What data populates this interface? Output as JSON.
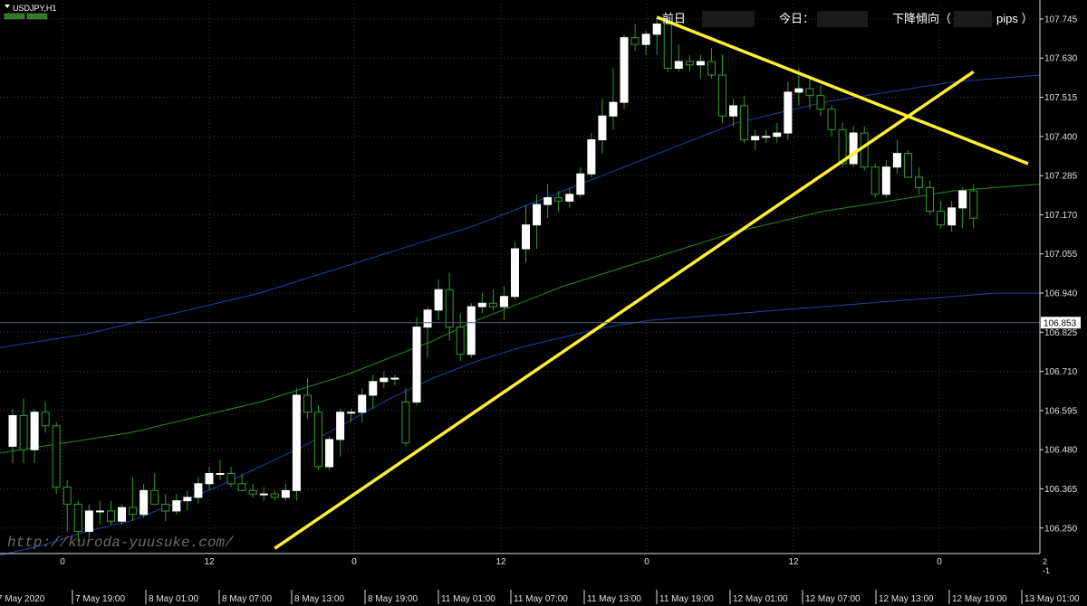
{
  "window": {
    "symbol_title": "USDJPY,H1",
    "watermark": "http://kuroda-yuusuke.com/"
  },
  "header": {
    "prev_day_label": "前日",
    "today_label": "今日：",
    "trend_label": "下降傾向（",
    "trend_unit": "pips ）"
  },
  "colors": {
    "background": "#000000",
    "bull_candle": "#ffffff",
    "bear_candle": "#000000",
    "wick_color": "#2e9e2e",
    "upper_band": "#2040a8",
    "middle_line": "#1f8f1f",
    "lower_band": "#2040a8",
    "trendline": "#ffee33",
    "grid": "#3a3a3a",
    "text": "#e0e0e0"
  },
  "current_price": {
    "value": 106.853,
    "label": "106.853"
  },
  "chart_data": {
    "type": "candlestick",
    "ylim": [
      106.175,
      107.79
    ],
    "y_ticks": [
      "107.745",
      "107.630",
      "107.515",
      "107.400",
      "107.285",
      "107.170",
      "107.055",
      "106.940",
      "106.825",
      "106.710",
      "106.595",
      "106.480",
      "106.365",
      "106.250"
    ],
    "x_ticks": [
      "7 May 2020",
      "7 May 19:00",
      "8 May 01:00",
      "8 May 07:00",
      "8 May 13:00",
      "8 May 19:00",
      "11 May 01:00",
      "11 May 07:00",
      "11 May 13:00",
      "11 May 19:00",
      "12 May 01:00",
      "12 May 07:00",
      "12 May 13:00",
      "12 May 19:00",
      "13 May 01:00"
    ],
    "hour_ticks": [
      "0",
      "12",
      "0",
      "12",
      "0",
      "12",
      "0"
    ],
    "candles": [
      {
        "o": 106.49,
        "h": 106.6,
        "l": 106.44,
        "c": 106.58
      },
      {
        "o": 106.58,
        "h": 106.63,
        "l": 106.44,
        "c": 106.48
      },
      {
        "o": 106.48,
        "h": 106.6,
        "l": 106.44,
        "c": 106.59
      },
      {
        "o": 106.59,
        "h": 106.62,
        "l": 106.53,
        "c": 106.55
      },
      {
        "o": 106.55,
        "h": 106.56,
        "l": 106.35,
        "c": 106.37
      },
      {
        "o": 106.37,
        "h": 106.39,
        "l": 106.24,
        "c": 106.32
      },
      {
        "o": 106.32,
        "h": 106.33,
        "l": 106.21,
        "c": 106.24
      },
      {
        "o": 106.24,
        "h": 106.32,
        "l": 106.22,
        "c": 106.3
      },
      {
        "o": 106.3,
        "h": 106.33,
        "l": 106.26,
        "c": 106.3
      },
      {
        "o": 106.3,
        "h": 106.33,
        "l": 106.26,
        "c": 106.27
      },
      {
        "o": 106.27,
        "h": 106.32,
        "l": 106.26,
        "c": 106.31
      },
      {
        "o": 106.31,
        "h": 106.4,
        "l": 106.27,
        "c": 106.29
      },
      {
        "o": 106.29,
        "h": 106.38,
        "l": 106.28,
        "c": 106.36
      },
      {
        "o": 106.36,
        "h": 106.41,
        "l": 106.33,
        "c": 106.32
      },
      {
        "o": 106.32,
        "h": 106.35,
        "l": 106.27,
        "c": 106.3
      },
      {
        "o": 106.3,
        "h": 106.35,
        "l": 106.29,
        "c": 106.33
      },
      {
        "o": 106.33,
        "h": 106.36,
        "l": 106.3,
        "c": 106.34
      },
      {
        "o": 106.34,
        "h": 106.4,
        "l": 106.32,
        "c": 106.38
      },
      {
        "o": 106.38,
        "h": 106.43,
        "l": 106.36,
        "c": 106.41
      },
      {
        "o": 106.41,
        "h": 106.45,
        "l": 106.39,
        "c": 106.41
      },
      {
        "o": 106.41,
        "h": 106.43,
        "l": 106.37,
        "c": 106.38
      },
      {
        "o": 106.38,
        "h": 106.41,
        "l": 106.36,
        "c": 106.36
      },
      {
        "o": 106.36,
        "h": 106.38,
        "l": 106.34,
        "c": 106.35
      },
      {
        "o": 106.35,
        "h": 106.37,
        "l": 106.33,
        "c": 106.35
      },
      {
        "o": 106.35,
        "h": 106.36,
        "l": 106.33,
        "c": 106.34
      },
      {
        "o": 106.34,
        "h": 106.38,
        "l": 106.33,
        "c": 106.36
      },
      {
        "o": 106.36,
        "h": 106.66,
        "l": 106.33,
        "c": 106.64
      },
      {
        "o": 106.64,
        "h": 106.69,
        "l": 106.57,
        "c": 106.59
      },
      {
        "o": 106.59,
        "h": 106.61,
        "l": 106.42,
        "c": 106.43
      },
      {
        "o": 106.43,
        "h": 106.52,
        "l": 106.42,
        "c": 106.51
      },
      {
        "o": 106.51,
        "h": 106.6,
        "l": 106.46,
        "c": 106.59
      },
      {
        "o": 106.59,
        "h": 106.6,
        "l": 106.56,
        "c": 106.59
      },
      {
        "o": 106.59,
        "h": 106.66,
        "l": 106.56,
        "c": 106.64
      },
      {
        "o": 106.64,
        "h": 106.7,
        "l": 106.6,
        "c": 106.68
      },
      {
        "o": 106.68,
        "h": 106.71,
        "l": 106.66,
        "c": 106.69
      },
      {
        "o": 106.69,
        "h": 106.7,
        "l": 106.67,
        "c": 106.69
      },
      {
        "o": 106.62,
        "h": 106.66,
        "l": 106.49,
        "c": 106.5
      },
      {
        "o": 106.62,
        "h": 106.87,
        "l": 106.61,
        "c": 106.84
      },
      {
        "o": 106.84,
        "h": 106.9,
        "l": 106.75,
        "c": 106.89
      },
      {
        "o": 106.89,
        "h": 106.98,
        "l": 106.86,
        "c": 106.95
      },
      {
        "o": 106.95,
        "h": 107.0,
        "l": 106.8,
        "c": 106.84
      },
      {
        "o": 106.84,
        "h": 106.88,
        "l": 106.74,
        "c": 106.76
      },
      {
        "o": 106.76,
        "h": 106.91,
        "l": 106.75,
        "c": 106.9
      },
      {
        "o": 106.9,
        "h": 106.94,
        "l": 106.88,
        "c": 106.91
      },
      {
        "o": 106.91,
        "h": 106.95,
        "l": 106.89,
        "c": 106.9
      },
      {
        "o": 106.9,
        "h": 106.96,
        "l": 106.86,
        "c": 106.93
      },
      {
        "o": 106.93,
        "h": 107.09,
        "l": 106.92,
        "c": 107.07
      },
      {
        "o": 107.07,
        "h": 107.2,
        "l": 107.03,
        "c": 107.14
      },
      {
        "o": 107.14,
        "h": 107.23,
        "l": 107.07,
        "c": 107.2
      },
      {
        "o": 107.2,
        "h": 107.26,
        "l": 107.16,
        "c": 107.22
      },
      {
        "o": 107.22,
        "h": 107.24,
        "l": 107.18,
        "c": 107.21
      },
      {
        "o": 107.21,
        "h": 107.25,
        "l": 107.19,
        "c": 107.23
      },
      {
        "o": 107.23,
        "h": 107.31,
        "l": 107.22,
        "c": 107.29
      },
      {
        "o": 107.29,
        "h": 107.41,
        "l": 107.28,
        "c": 107.39
      },
      {
        "o": 107.39,
        "h": 107.51,
        "l": 107.35,
        "c": 107.46
      },
      {
        "o": 107.46,
        "h": 107.6,
        "l": 107.42,
        "c": 107.5
      },
      {
        "o": 107.5,
        "h": 107.7,
        "l": 107.48,
        "c": 107.69
      },
      {
        "o": 107.69,
        "h": 107.73,
        "l": 107.65,
        "c": 107.67
      },
      {
        "o": 107.67,
        "h": 107.71,
        "l": 107.64,
        "c": 107.7
      },
      {
        "o": 107.7,
        "h": 107.75,
        "l": 107.64,
        "c": 107.73
      },
      {
        "o": 107.73,
        "h": 107.75,
        "l": 107.59,
        "c": 107.6
      },
      {
        "o": 107.6,
        "h": 107.67,
        "l": 107.59,
        "c": 107.62
      },
      {
        "o": 107.62,
        "h": 107.64,
        "l": 107.59,
        "c": 107.61
      },
      {
        "o": 107.61,
        "h": 107.64,
        "l": 107.57,
        "c": 107.62
      },
      {
        "o": 107.62,
        "h": 107.66,
        "l": 107.57,
        "c": 107.58
      },
      {
        "o": 107.58,
        "h": 107.64,
        "l": 107.44,
        "c": 107.46
      },
      {
        "o": 107.46,
        "h": 107.51,
        "l": 107.43,
        "c": 107.49
      },
      {
        "o": 107.49,
        "h": 107.52,
        "l": 107.38,
        "c": 107.39
      },
      {
        "o": 107.39,
        "h": 107.42,
        "l": 107.36,
        "c": 107.4
      },
      {
        "o": 107.4,
        "h": 107.42,
        "l": 107.38,
        "c": 107.4
      },
      {
        "o": 107.4,
        "h": 107.44,
        "l": 107.38,
        "c": 107.41
      },
      {
        "o": 107.41,
        "h": 107.56,
        "l": 107.39,
        "c": 107.53
      },
      {
        "o": 107.53,
        "h": 107.6,
        "l": 107.49,
        "c": 107.54
      },
      {
        "o": 107.54,
        "h": 107.57,
        "l": 107.48,
        "c": 107.52
      },
      {
        "o": 107.52,
        "h": 107.55,
        "l": 107.46,
        "c": 107.48
      },
      {
        "o": 107.48,
        "h": 107.49,
        "l": 107.4,
        "c": 107.42
      },
      {
        "o": 107.42,
        "h": 107.44,
        "l": 107.31,
        "c": 107.32
      },
      {
        "o": 107.32,
        "h": 107.43,
        "l": 107.31,
        "c": 107.41
      },
      {
        "o": 107.41,
        "h": 107.43,
        "l": 107.3,
        "c": 107.31
      },
      {
        "o": 107.31,
        "h": 107.32,
        "l": 107.22,
        "c": 107.23
      },
      {
        "o": 107.23,
        "h": 107.33,
        "l": 107.22,
        "c": 107.31
      },
      {
        "o": 107.31,
        "h": 107.39,
        "l": 107.29,
        "c": 107.35
      },
      {
        "o": 107.35,
        "h": 107.36,
        "l": 107.28,
        "c": 107.28
      },
      {
        "o": 107.28,
        "h": 107.31,
        "l": 107.23,
        "c": 107.25
      },
      {
        "o": 107.25,
        "h": 107.27,
        "l": 107.17,
        "c": 107.18
      },
      {
        "o": 107.18,
        "h": 107.21,
        "l": 107.13,
        "c": 107.14
      },
      {
        "o": 107.14,
        "h": 107.21,
        "l": 107.12,
        "c": 107.19
      },
      {
        "o": 107.19,
        "h": 107.25,
        "l": 107.13,
        "c": 107.24
      },
      {
        "o": 107.24,
        "h": 107.26,
        "l": 107.13,
        "c": 107.16
      }
    ],
    "upper_band": [
      106.78,
      106.8,
      106.82,
      106.85,
      106.88,
      106.91,
      106.94,
      106.98,
      107.02,
      107.06,
      107.1,
      107.14,
      107.19,
      107.24,
      107.29,
      107.34,
      107.39,
      107.44,
      107.47,
      107.5,
      107.52,
      107.54,
      107.56,
      107.57,
      107.58
    ],
    "middle_line": [
      106.47,
      106.49,
      106.51,
      106.53,
      106.56,
      106.59,
      106.62,
      106.66,
      106.7,
      106.75,
      106.8,
      106.86,
      106.91,
      106.96,
      107.0,
      107.04,
      107.08,
      107.12,
      107.15,
      107.18,
      107.2,
      107.22,
      107.24,
      107.25,
      107.26
    ],
    "lower_band": [
      106.17,
      106.2,
      106.24,
      106.27,
      106.32,
      106.37,
      106.43,
      106.49,
      106.56,
      106.63,
      106.69,
      106.74,
      106.78,
      106.81,
      106.84,
      106.86,
      106.87,
      106.88,
      106.89,
      106.9,
      106.91,
      106.92,
      106.93,
      106.94,
      106.94
    ],
    "trendlines": [
      {
        "from": {
          "bar": 24,
          "price": 106.19
        },
        "to": {
          "bar": 88,
          "price": 107.59
        }
      },
      {
        "from": {
          "bar": 59,
          "price": 107.75
        },
        "to": {
          "bar": 93,
          "price": 107.32
        }
      }
    ],
    "scale_extra": [
      "2",
      "-1"
    ]
  }
}
